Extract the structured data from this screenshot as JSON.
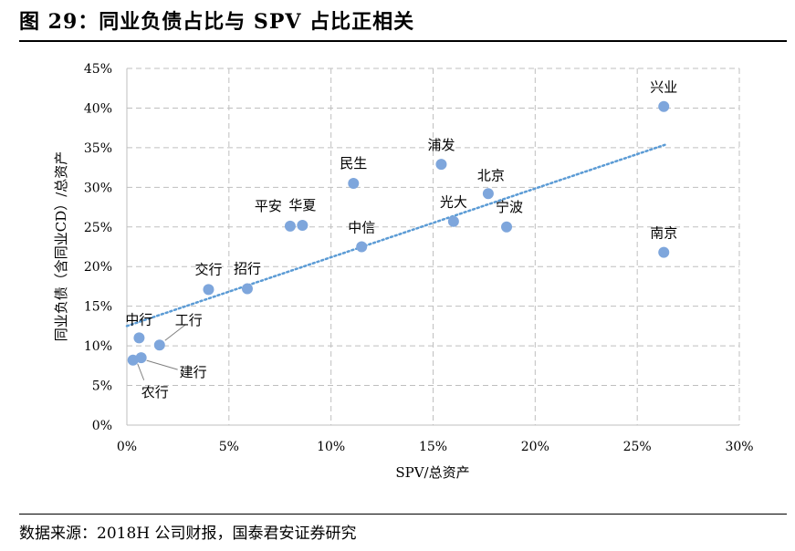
{
  "figure": {
    "title": "图 29：同业负债占比与 SPV 占比正相关",
    "source": "数据来源：2018H 公司财报，国泰君安证券研究"
  },
  "chart_data": {
    "type": "scatter",
    "xlabel": "SPV/总资产",
    "ylabel": "同业负债（含同业CD）/总资产",
    "xlim": [
      0,
      0.3
    ],
    "ylim": [
      0,
      0.45
    ],
    "x_ticks": [
      "0%",
      "5%",
      "10%",
      "15%",
      "20%",
      "25%",
      "30%"
    ],
    "y_ticks": [
      "0%",
      "5%",
      "10%",
      "15%",
      "20%",
      "25%",
      "30%",
      "35%",
      "40%",
      "45%"
    ],
    "grid": "dashed",
    "marker_color": "#7EA6DC",
    "trendline": {
      "type": "linear",
      "style": "dotted",
      "color": "#5B9BD5",
      "x": [
        0.0,
        0.264
      ],
      "y": [
        0.125,
        0.354
      ]
    },
    "points": [
      {
        "label": "兴业",
        "x": 0.263,
        "y": 0.402
      },
      {
        "label": "浦发",
        "x": 0.154,
        "y": 0.329
      },
      {
        "label": "北京",
        "x": 0.177,
        "y": 0.292
      },
      {
        "label": "民生",
        "x": 0.111,
        "y": 0.305
      },
      {
        "label": "光大",
        "x": 0.16,
        "y": 0.257
      },
      {
        "label": "宁波",
        "x": 0.186,
        "y": 0.25
      },
      {
        "label": "平安",
        "x": 0.08,
        "y": 0.251
      },
      {
        "label": "华夏",
        "x": 0.086,
        "y": 0.252
      },
      {
        "label": "中信",
        "x": 0.115,
        "y": 0.225
      },
      {
        "label": "南京",
        "x": 0.263,
        "y": 0.218
      },
      {
        "label": "交行",
        "x": 0.04,
        "y": 0.171
      },
      {
        "label": "招行",
        "x": 0.059,
        "y": 0.172
      },
      {
        "label": "中行",
        "x": 0.006,
        "y": 0.11
      },
      {
        "label": "工行",
        "x": 0.016,
        "y": 0.101
      },
      {
        "label": "建行",
        "x": 0.007,
        "y": 0.085
      },
      {
        "label": "农行",
        "x": 0.003,
        "y": 0.082
      }
    ]
  }
}
